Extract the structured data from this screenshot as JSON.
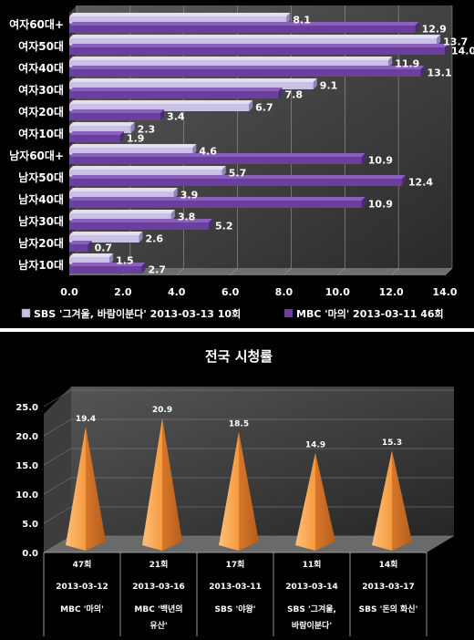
{
  "chart_data": [
    {
      "type": "bar",
      "orientation": "horizontal",
      "categories": [
        "여자60대+",
        "여자50대",
        "여자40대",
        "여자30대",
        "여자20대",
        "여자10대",
        "남자60대+",
        "남자50대",
        "남자40대",
        "남자30대",
        "남자20대",
        "남자10대"
      ],
      "series": [
        {
          "name": "SBS '그겨울, 바람이분다' 2013-03-13 10회",
          "color": "#c9c0e6",
          "values": [
            8.1,
            13.7,
            11.9,
            9.1,
            6.7,
            2.3,
            4.6,
            5.7,
            3.9,
            3.8,
            2.6,
            1.5
          ]
        },
        {
          "name": "MBC '마의' 2013-03-11 46회",
          "color": "#6b3fa0",
          "values": [
            12.9,
            14.0,
            13.1,
            7.8,
            3.4,
            1.9,
            10.9,
            12.4,
            10.9,
            5.2,
            0.7,
            2.7
          ]
        }
      ],
      "xlim": [
        0,
        14
      ],
      "xticks": [
        "0.0",
        "2.0",
        "4.0",
        "6.0",
        "8.0",
        "10.0",
        "12.0",
        "14.0"
      ],
      "legend_position": "bottom"
    },
    {
      "type": "bar",
      "shape": "pyramid",
      "title": "전국 시청률",
      "categories": [
        {
          "episode": "47회",
          "date": "2013-03-12",
          "program": [
            "MBC '마의'"
          ]
        },
        {
          "episode": "21회",
          "date": "2013-03-16",
          "program": [
            "MBC '백년의",
            "유산'"
          ]
        },
        {
          "episode": "17회",
          "date": "2013-03-11",
          "program": [
            "SBS '야왕'"
          ]
        },
        {
          "episode": "11회",
          "date": "2013-03-14",
          "program": [
            "SBS '그겨울,",
            "바람이분다'"
          ]
        },
        {
          "episode": "14회",
          "date": "2013-03-17",
          "program": [
            "SBS '돈의 화신'"
          ]
        }
      ],
      "values": [
        19.4,
        20.9,
        18.5,
        14.9,
        15.3
      ],
      "value_labels": [
        "19.4",
        "20.9",
        "18.5",
        "14.9",
        "15.3"
      ],
      "ylim": [
        0,
        25
      ],
      "yticks": [
        "0.0",
        "5.0",
        "10.0",
        "15.0",
        "20.0",
        "25.0"
      ],
      "color": "#f5a04a"
    }
  ]
}
